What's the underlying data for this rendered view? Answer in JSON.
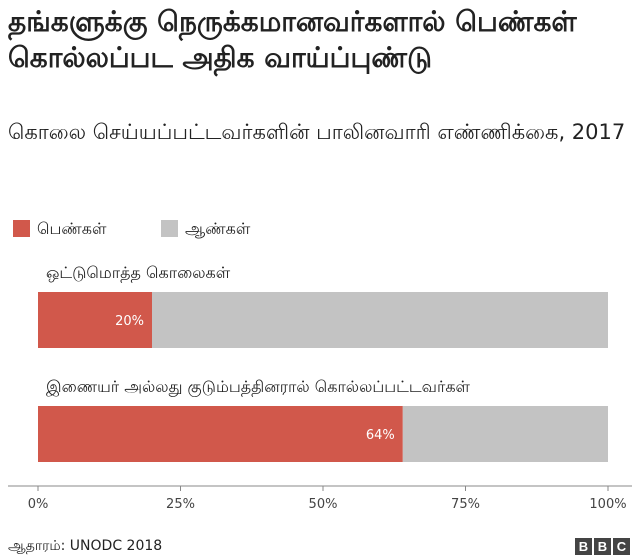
{
  "title": "தங்களுக்கு நெருக்கமானவர்களால் பெண்கள் கொல்லப்பட அதிக வாய்ப்புண்டு",
  "subtitle": "கொலை செய்யப்பட்டவர்களின் பாலினவாரி எண்ணிக்கை, 2017",
  "source": "ஆதாரம்: UNODC 2018",
  "logo": [
    "B",
    "B",
    "C"
  ],
  "colors": {
    "women": "#d1584b",
    "men": "#c3c3c3",
    "axis": "#888888",
    "text": "#222222"
  },
  "chart_data": {
    "type": "bar",
    "orientation": "horizontal",
    "stacked": true,
    "categories": [
      "ஒட்டுமொத்த கொலைகள்",
      "இணையர் அல்லது குடும்பத்தினரால் கொல்லப்பட்டவர்கள்"
    ],
    "series": [
      {
        "name": "பெண்கள்",
        "values": [
          20,
          64
        ],
        "color": "#d1584b"
      },
      {
        "name": "ஆண்கள்",
        "values": [
          80,
          36
        ],
        "color": "#c3c3c3"
      }
    ],
    "data_labels": [
      "20%",
      "64%"
    ],
    "xlim": [
      0,
      100
    ],
    "x_ticks": [
      "0%",
      "25%",
      "50%",
      "75%",
      "100%"
    ],
    "legend_position": "top-left",
    "grid": false
  }
}
